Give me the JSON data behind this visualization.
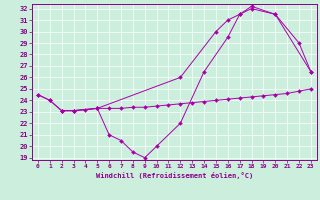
{
  "title": "",
  "xlabel": "Windchill (Refroidissement éolien,°C)",
  "bg_color": "#cceedd",
  "line_color": "#aa00aa",
  "xlim": [
    -0.5,
    23.5
  ],
  "ylim": [
    18.8,
    32.4
  ],
  "xticks": [
    0,
    1,
    2,
    3,
    4,
    5,
    6,
    7,
    8,
    9,
    10,
    11,
    12,
    13,
    14,
    15,
    16,
    17,
    18,
    19,
    20,
    21,
    22,
    23
  ],
  "yticks": [
    19,
    20,
    21,
    22,
    23,
    24,
    25,
    26,
    27,
    28,
    29,
    30,
    31,
    32
  ],
  "series": [
    {
      "x": [
        0,
        1,
        2,
        3,
        4,
        5,
        6,
        7,
        8,
        9,
        10,
        11,
        12,
        13,
        14,
        15,
        16,
        17,
        18,
        19,
        20,
        21,
        22,
        23
      ],
      "y": [
        24.5,
        24.0,
        23.1,
        23.1,
        23.2,
        23.3,
        23.3,
        23.3,
        23.4,
        23.4,
        23.5,
        23.6,
        23.7,
        23.8,
        23.9,
        24.0,
        24.1,
        24.2,
        24.3,
        24.4,
        24.5,
        24.6,
        24.8,
        25.0
      ]
    },
    {
      "x": [
        0,
        1,
        2,
        3,
        5,
        6,
        7,
        8,
        9,
        10,
        12,
        14,
        16,
        17,
        18,
        20,
        22,
        23
      ],
      "y": [
        24.5,
        24.0,
        23.1,
        23.1,
        23.3,
        21.0,
        20.5,
        19.5,
        19.0,
        20.0,
        22.0,
        26.5,
        29.5,
        31.5,
        32.0,
        31.5,
        29.0,
        26.5
      ]
    },
    {
      "x": [
        2,
        3,
        5,
        12,
        15,
        16,
        17,
        18,
        20,
        23
      ],
      "y": [
        23.1,
        23.1,
        23.3,
        26.0,
        30.0,
        31.0,
        31.5,
        32.2,
        31.5,
        26.5
      ]
    }
  ]
}
